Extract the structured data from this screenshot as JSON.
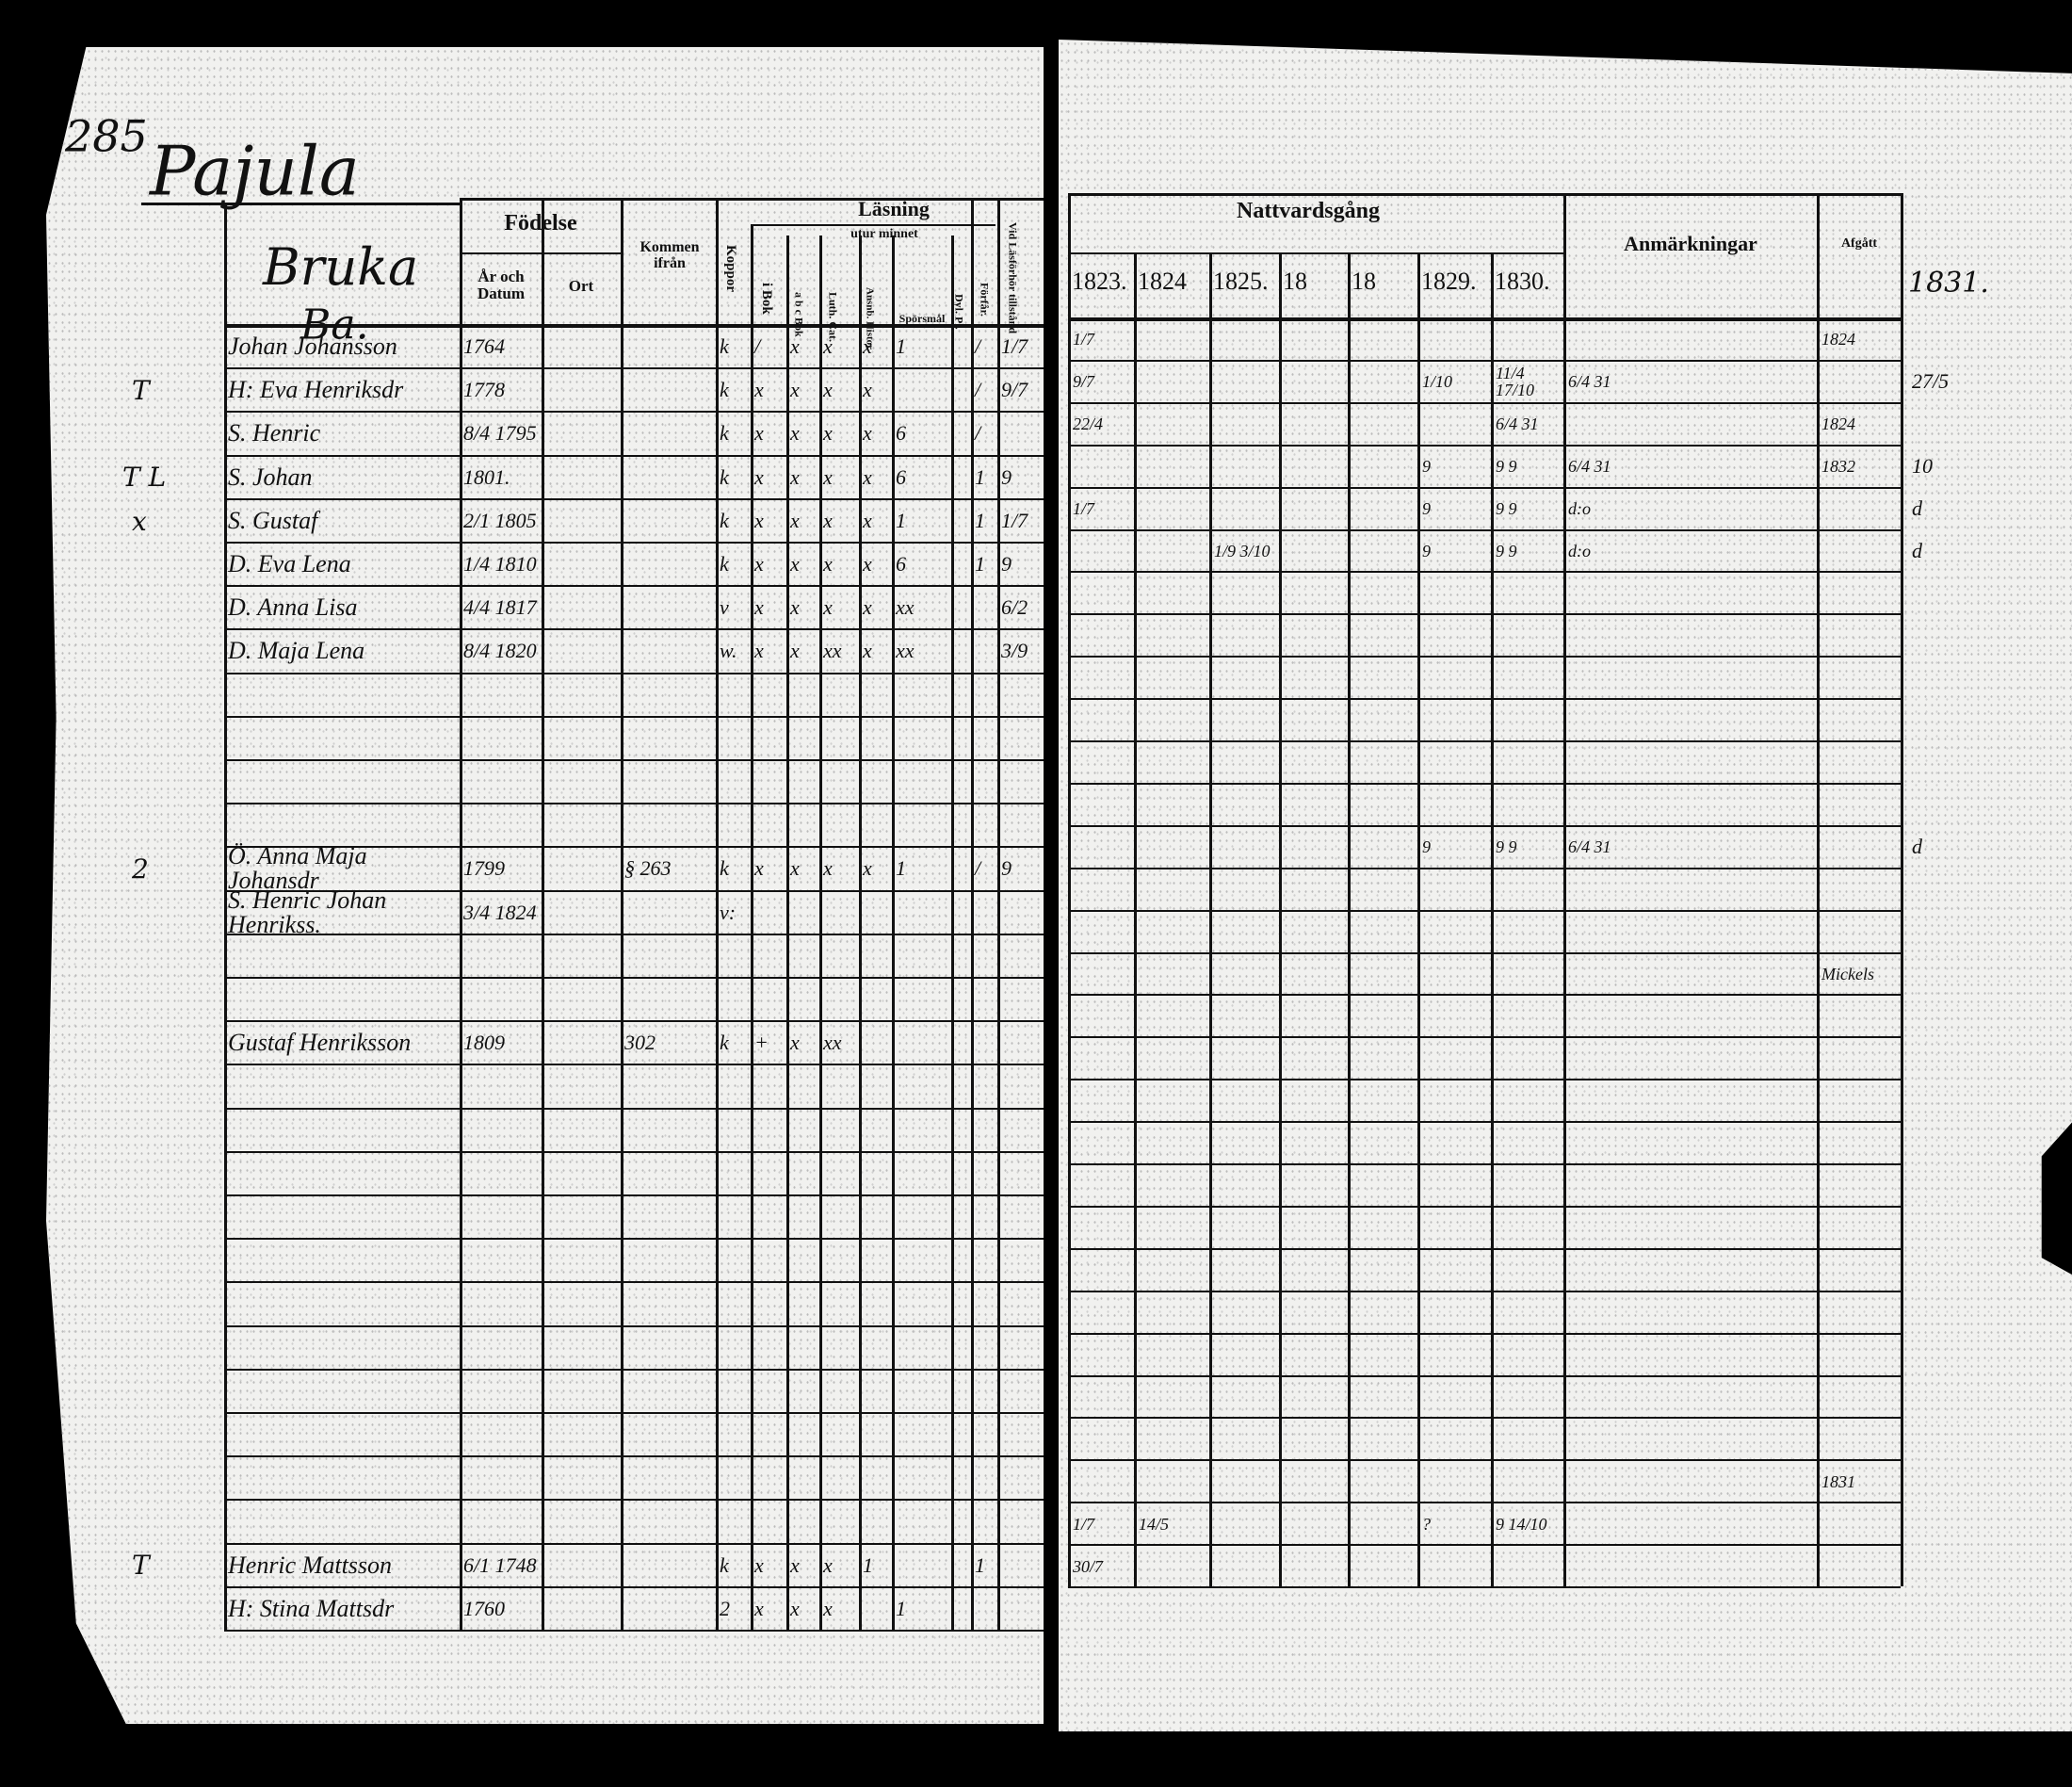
{
  "left_page": {
    "page_number": "285",
    "village": "Pajula",
    "farm_header": "Bruka",
    "farm_sub": "Ba.",
    "headers": {
      "fodelse": "Födelse",
      "ar_och_datum": "År och Datum",
      "ort": "Ort",
      "kommen_ifran": "Kommen ifrån",
      "koppor": "Koppor",
      "lasning": "Läsning",
      "i_bok": "i Bok",
      "utur_minnet": "utur minnet",
      "abc_bok": "a b c Bok",
      "luth_cat": "Luth. Cat.",
      "ansnb_hist": "Ansnb. Histor.",
      "sporsmal": "Spörsmål",
      "dyl_pl": "Dyl. Pl.",
      "forfaran": "Förfår.",
      "vid_tillstand": "Vid Läsförhör tillstånd"
    },
    "margin_marks": [
      {
        "row": 1,
        "text": "T"
      },
      {
        "row": 3,
        "text": "T L"
      },
      {
        "row": 4,
        "text": "x"
      },
      {
        "row": 12,
        "text": "2"
      },
      {
        "row": 28,
        "text": "T"
      }
    ],
    "rows": [
      {
        "name": "Johan Johansson",
        "birth": "1764",
        "koppor": "k",
        "ibok": "/",
        "abc": "x",
        "luth": "x",
        "ansnb": "x",
        "spors": "1",
        "forfar": "/",
        "vid": "1/7"
      },
      {
        "name": "H: Eva Henriksdr",
        "birth": "1778",
        "koppor": "k",
        "ibok": "x",
        "abc": "x",
        "luth": "x",
        "ansnb": "x",
        "forfar": "/",
        "vid": "9/7"
      },
      {
        "name": "S. Henric",
        "birth": "8/4 1795",
        "koppor": "k",
        "ibok": "x",
        "abc": "x",
        "luth": "x",
        "ansnb": "x",
        "spors": "6",
        "forfar": "/"
      },
      {
        "name": "S. Johan",
        "birth": "1801.",
        "koppor": "k",
        "ibok": "x",
        "abc": "x",
        "luth": "x",
        "ansnb": "x",
        "spors": "6",
        "forfar": "1",
        "vid": "9"
      },
      {
        "name": "S. Gustaf",
        "birth": "2/1 1805",
        "koppor": "k",
        "ibok": "x",
        "abc": "x",
        "luth": "x",
        "ansnb": "x",
        "spors": "1",
        "forfar": "1",
        "vid": "1/7"
      },
      {
        "name": "D. Eva Lena",
        "birth": "1/4 1810",
        "koppor": "k",
        "ibok": "x",
        "abc": "x",
        "luth": "x",
        "ansnb": "x",
        "spors": "6",
        "forfar": "1",
        "vid": "9"
      },
      {
        "name": "D. Anna Lisa",
        "birth": "4/4 1817",
        "koppor": "v",
        "ibok": "x",
        "abc": "x",
        "luth": "x",
        "ansnb": "x",
        "spors": "xx",
        "vid": "6/2"
      },
      {
        "name": "D. Maja Lena",
        "birth": "8/4 1820",
        "koppor": "w.",
        "ibok": "x",
        "abc": "x",
        "luth": "xx",
        "ansnb": "x",
        "spors": "xx",
        "vid": "3/9"
      },
      {},
      {},
      {},
      {},
      {
        "name": "Ö. Anna Maja Johansdr",
        "birth": "1799",
        "kommen": "§ 263",
        "koppor": "k",
        "ibok": "x",
        "abc": "x",
        "luth": "x",
        "ansnb": "x",
        "spors": "1",
        "forfar": "/",
        "vid": "9"
      },
      {
        "name": "S. Henric Johan Henrikss.",
        "birth": "3/4 1824",
        "koppor": "v:"
      },
      {},
      {},
      {
        "name": "Gustaf Henriksson",
        "birth": "1809",
        "kommen": "302",
        "koppor": "k",
        "ibok": "+",
        "abc": "x",
        "luth": "xx"
      },
      {},
      {},
      {},
      {},
      {},
      {},
      {},
      {},
      {},
      {},
      {},
      {
        "name": "Henric Mattsson",
        "birth": "6/1 1748",
        "koppor": "k",
        "ibok": "x",
        "abc": "x",
        "luth": "x",
        "ansnb": "1",
        "forfar": "1"
      },
      {
        "name": "H: Stina Mattsdr",
        "birth": "1760",
        "koppor": "2",
        "ibok": "x",
        "abc": "x",
        "luth": "x",
        "spors": "1"
      }
    ]
  },
  "right_page": {
    "headers": {
      "nattvardsgang": "Nattvardsgång",
      "years": [
        "1823.",
        "1824",
        "1825.",
        "18",
        "18",
        "1829.",
        "1830."
      ],
      "anmarkningar": "Anmärkningar",
      "afgatt": "Afgått",
      "outside_year": "1831."
    },
    "rows": [
      {
        "y1823": "1/7",
        "afgatt": "1824"
      },
      {
        "y1823": "9/7",
        "y1829": "1/10",
        "y1830": "11/4 17/10",
        "anm": "6/4 31",
        "margin": "27/5"
      },
      {
        "y1823": "22/4",
        "y1830": "6/4 31",
        "afgatt": "1824"
      },
      {
        "y1829": "9",
        "y1830": "9  9",
        "anm": "6/4 31",
        "afgatt": "1832",
        "margin": "10"
      },
      {
        "y1823": "1/7",
        "y1829": "9",
        "y1830": "9  9",
        "anm": "d:o",
        "margin": "d"
      },
      {
        "y1825": "1/9 3/10",
        "y1829": "9",
        "y1830": "9  9",
        "anm": "d:o",
        "margin": "d"
      },
      {},
      {},
      {},
      {},
      {},
      {},
      {
        "y1829": "9",
        "y1830": "9  9",
        "anm": "6/4 31",
        "margin": "d"
      },
      {},
      {},
      {
        "afgatt": "Mickels"
      },
      {},
      {},
      {},
      {},
      {},
      {},
      {},
      {},
      {},
      {},
      {},
      {
        "afgatt": "1831"
      },
      {
        "y1823": "1/7",
        "y1824": "14/5",
        "y1829": "?",
        "y1830": "9 14/10"
      },
      {
        "y1823": "30/7"
      }
    ]
  }
}
